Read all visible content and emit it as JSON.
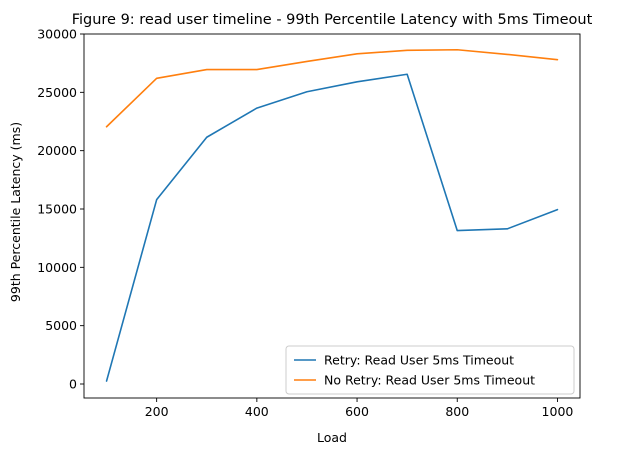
{
  "chart_data": {
    "type": "line",
    "title": "Figure 9: read user timeline - 99th Percentile Latency with 5ms Timeout",
    "xlabel": "Load",
    "ylabel": "99th Percentile Latency (ms)",
    "x": [
      100,
      200,
      300,
      400,
      500,
      600,
      700,
      800,
      900,
      1000
    ],
    "xlim": [
      55,
      1045
    ],
    "ylim": [
      -1200,
      30000
    ],
    "xticks": [
      200,
      400,
      600,
      800,
      1000
    ],
    "yticks": [
      0,
      5000,
      10000,
      15000,
      20000,
      25000,
      30000
    ],
    "grid": false,
    "legend_position": "lower-right",
    "series": [
      {
        "name": "Retry: Read User 5ms Timeout",
        "color": "#1f77b4",
        "values": [
          250,
          15800,
          21150,
          23650,
          25050,
          25900,
          26550,
          13150,
          13300,
          14950
        ]
      },
      {
        "name": "No Retry: Read User 5ms Timeout",
        "color": "#ff7f0e",
        "values": [
          22050,
          26200,
          26950,
          26950,
          27650,
          28300,
          28600,
          28650,
          28250,
          27800
        ]
      }
    ]
  }
}
